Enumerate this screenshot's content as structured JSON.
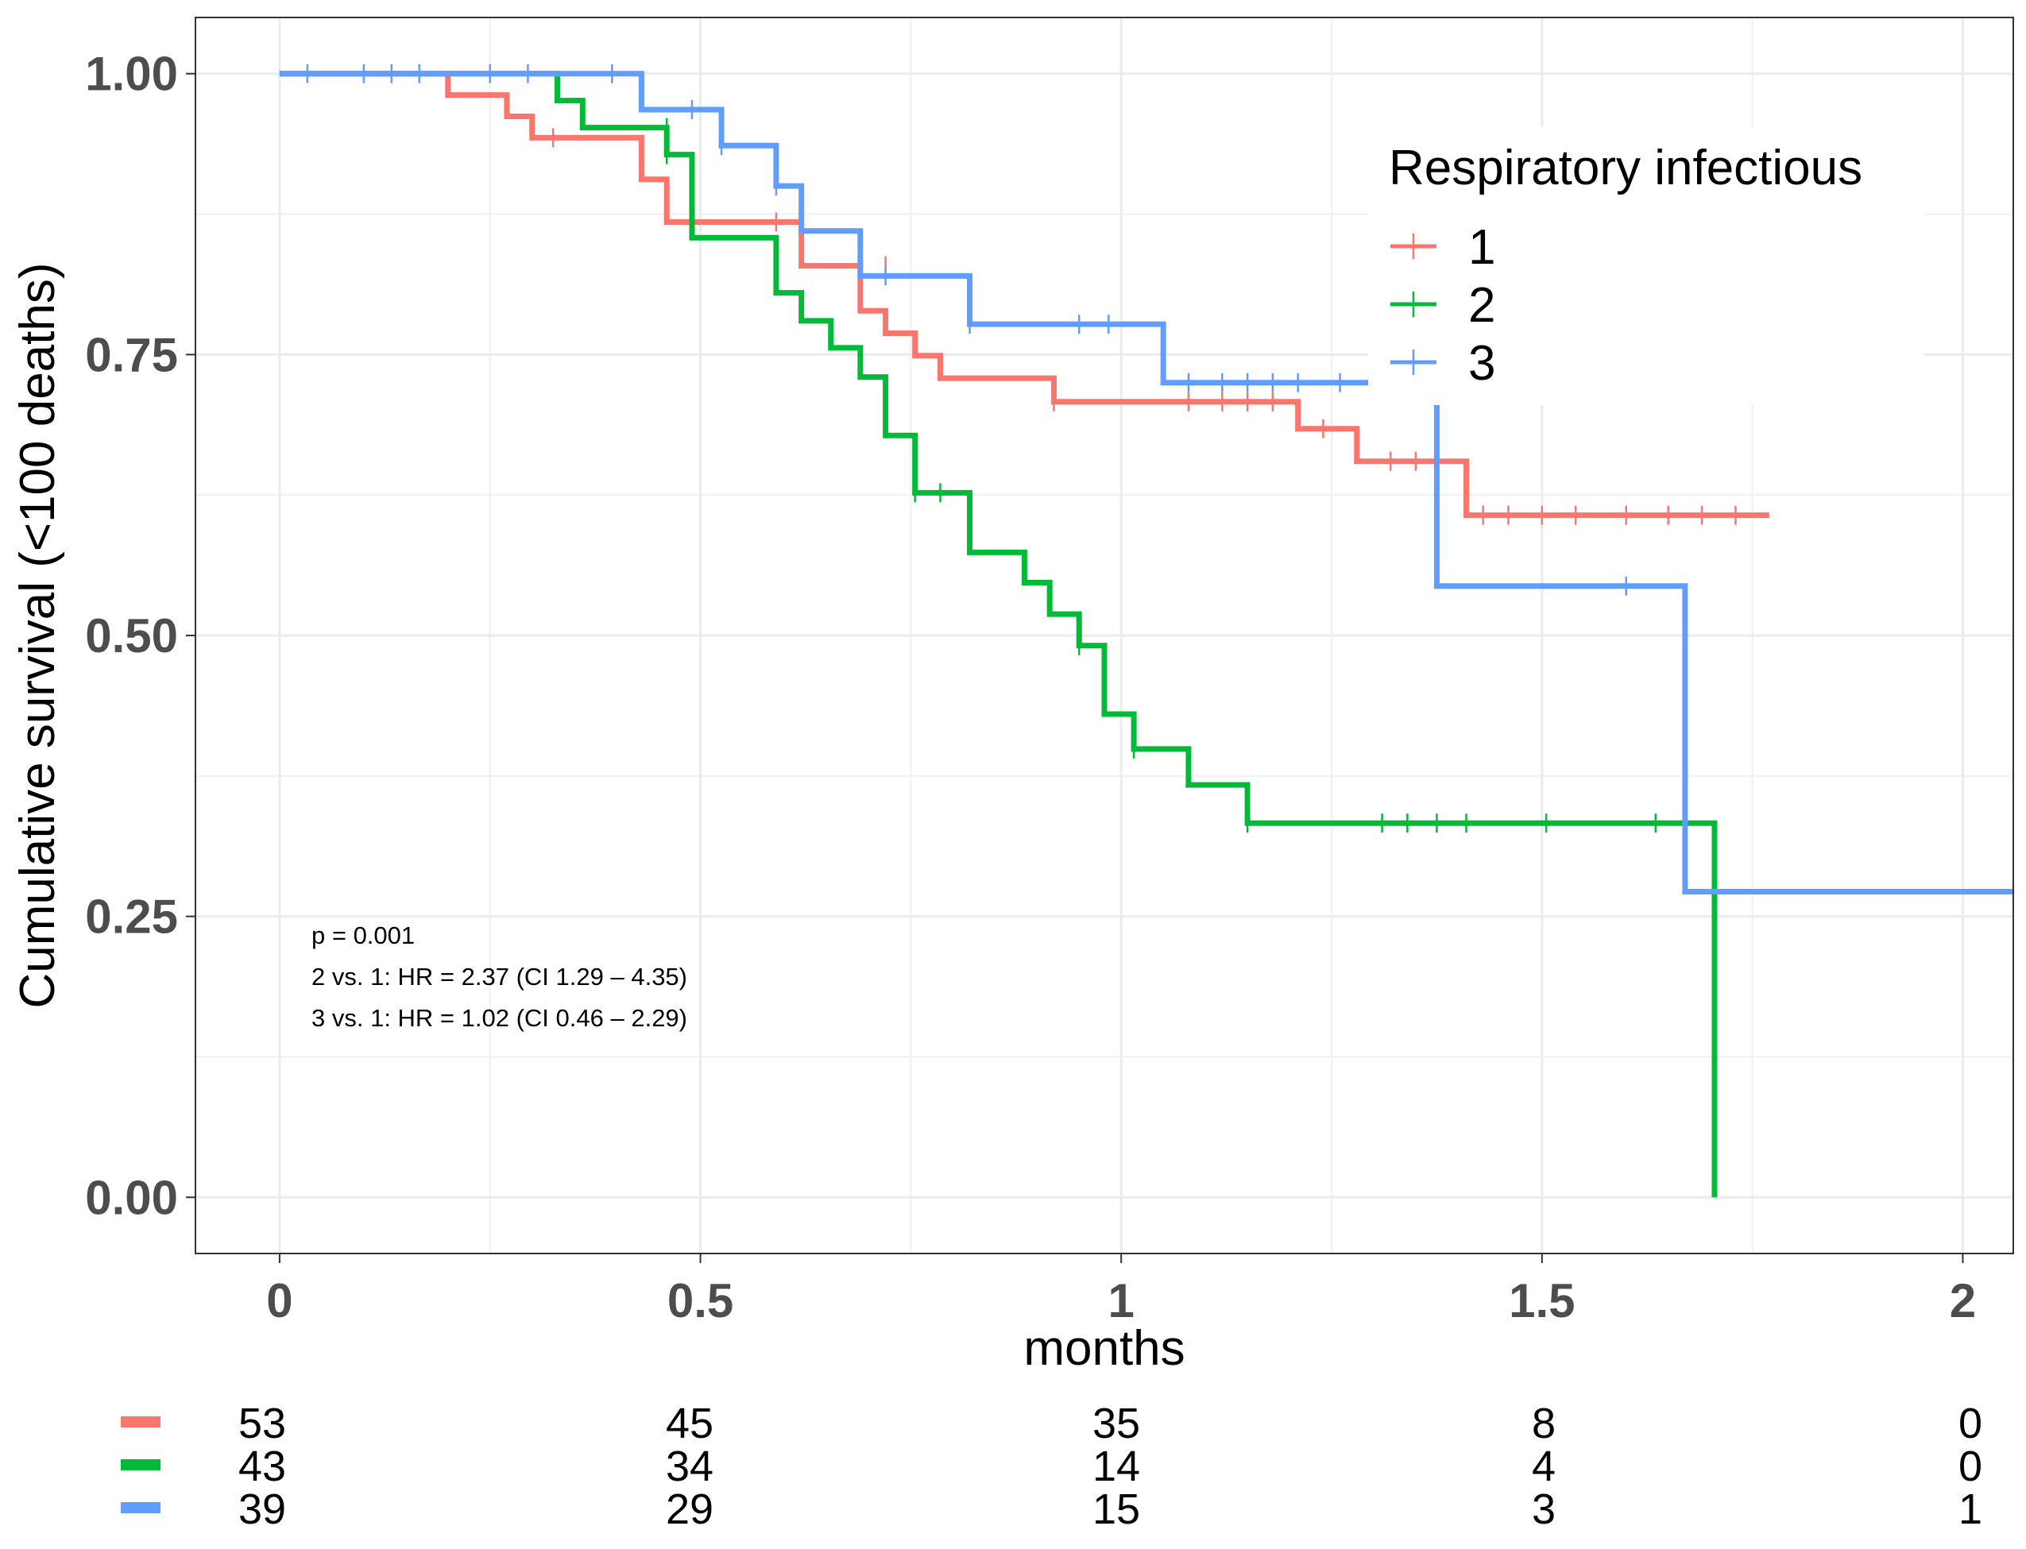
{
  "chart_data": {
    "type": "line",
    "subtype": "kaplan-meier step",
    "xlabel": "months",
    "ylabel": "Cumulative survival (<100 deaths)",
    "xlim": [
      -0.1,
      2.06
    ],
    "ylim": [
      -0.05,
      1.05
    ],
    "x_ticks": [
      0,
      0.5,
      1,
      1.5,
      2
    ],
    "x_tick_labels": [
      "0",
      "0.5",
      "1",
      "1.5",
      "2"
    ],
    "y_ticks": [
      0,
      0.25,
      0.5,
      0.75,
      1
    ],
    "y_tick_labels": [
      "0.00",
      "0.25",
      "0.50",
      "0.75",
      "1.00"
    ],
    "grid": true,
    "legend": {
      "title": "Respiratory infectious",
      "placement": "top-right"
    },
    "series": [
      {
        "name": "1",
        "color": "#F8766D",
        "steps": [
          [
            0,
            1.0
          ],
          [
            0.2,
            0.981
          ],
          [
            0.27,
            0.962
          ],
          [
            0.3,
            0.943
          ],
          [
            0.43,
            0.906
          ],
          [
            0.46,
            0.868
          ],
          [
            0.62,
            0.829
          ],
          [
            0.69,
            0.789
          ],
          [
            0.72,
            0.769
          ],
          [
            0.755,
            0.749
          ],
          [
            0.785,
            0.729
          ],
          [
            0.92,
            0.708
          ],
          [
            1.21,
            0.684
          ],
          [
            1.28,
            0.655
          ],
          [
            1.41,
            0.607
          ],
          [
            1.77,
            0.607
          ]
        ],
        "censors": [
          [
            0.325,
            0.943
          ],
          [
            0.59,
            0.868
          ],
          [
            0.72,
            0.829
          ],
          [
            0.92,
            0.708
          ],
          [
            1.08,
            0.708
          ],
          [
            1.12,
            0.708
          ],
          [
            1.15,
            0.708
          ],
          [
            1.18,
            0.708
          ],
          [
            1.24,
            0.684
          ],
          [
            1.32,
            0.655
          ],
          [
            1.35,
            0.655
          ],
          [
            1.43,
            0.607
          ],
          [
            1.46,
            0.607
          ],
          [
            1.5,
            0.607
          ],
          [
            1.54,
            0.607
          ],
          [
            1.6,
            0.607
          ],
          [
            1.65,
            0.607
          ],
          [
            1.69,
            0.607
          ],
          [
            1.73,
            0.607
          ]
        ]
      },
      {
        "name": "2",
        "color": "#00BA38",
        "steps": [
          [
            0,
            1.0
          ],
          [
            0.33,
            0.976
          ],
          [
            0.36,
            0.952
          ],
          [
            0.46,
            0.928
          ],
          [
            0.49,
            0.854
          ],
          [
            0.59,
            0.805
          ],
          [
            0.62,
            0.78
          ],
          [
            0.655,
            0.756
          ],
          [
            0.69,
            0.73
          ],
          [
            0.72,
            0.678
          ],
          [
            0.755,
            0.627
          ],
          [
            0.82,
            0.574
          ],
          [
            0.885,
            0.547
          ],
          [
            0.915,
            0.519
          ],
          [
            0.95,
            0.491
          ],
          [
            0.98,
            0.43
          ],
          [
            1.015,
            0.399
          ],
          [
            1.08,
            0.367
          ],
          [
            1.15,
            0.333
          ],
          [
            1.705,
            0.333
          ],
          [
            1.705,
            0.0
          ]
        ],
        "censors": [
          [
            0.46,
            0.952
          ],
          [
            0.46,
            0.928
          ],
          [
            0.755,
            0.627
          ],
          [
            0.785,
            0.627
          ],
          [
            0.95,
            0.491
          ],
          [
            1.015,
            0.399
          ],
          [
            1.15,
            0.333
          ],
          [
            1.31,
            0.333
          ],
          [
            1.34,
            0.333
          ],
          [
            1.375,
            0.333
          ],
          [
            1.41,
            0.333
          ],
          [
            1.505,
            0.333
          ],
          [
            1.635,
            0.333
          ],
          [
            1.67,
            0.333
          ]
        ]
      },
      {
        "name": "3",
        "color": "#619CFF",
        "steps": [
          [
            0,
            1.0
          ],
          [
            0.43,
            0.968
          ],
          [
            0.525,
            0.936
          ],
          [
            0.59,
            0.9
          ],
          [
            0.62,
            0.86
          ],
          [
            0.69,
            0.82
          ],
          [
            0.82,
            0.777
          ],
          [
            1.05,
            0.725
          ],
          [
            1.375,
            0.725
          ],
          [
            1.375,
            0.544
          ],
          [
            1.67,
            0.544
          ],
          [
            1.67,
            0.272
          ],
          [
            2.06,
            0.272
          ]
        ]
      }
    ],
    "series_censors_3": [
      [
        0.033,
        1.0
      ],
      [
        0.1,
        1.0
      ],
      [
        0.133,
        1.0
      ],
      [
        0.166,
        1.0
      ],
      [
        0.25,
        1.0
      ],
      [
        0.295,
        1.0
      ],
      [
        0.395,
        1.0
      ],
      [
        0.49,
        0.968
      ],
      [
        0.525,
        0.936
      ],
      [
        0.59,
        0.9
      ],
      [
        0.72,
        0.82
      ],
      [
        0.82,
        0.777
      ],
      [
        0.95,
        0.777
      ],
      [
        0.985,
        0.777
      ],
      [
        1.08,
        0.725
      ],
      [
        1.12,
        0.725
      ],
      [
        1.15,
        0.725
      ],
      [
        1.18,
        0.725
      ],
      [
        1.21,
        0.725
      ],
      [
        1.26,
        0.725
      ],
      [
        1.6,
        0.544
      ]
    ],
    "annotations": [
      "p = 0.001",
      "2 vs. 1: HR = 2.37 (CI 1.29 – 4.35)",
      "3 vs. 1: HR = 1.02 (CI 0.46 – 2.29)"
    ],
    "risk_table": {
      "times": [
        0,
        0.5,
        1,
        1.5,
        2
      ],
      "rows": [
        {
          "color": "#F8766D",
          "counts": [
            "53",
            "45",
            "35",
            "8",
            "0"
          ]
        },
        {
          "color": "#00BA38",
          "counts": [
            "43",
            "34",
            "14",
            "4",
            "0"
          ]
        },
        {
          "color": "#619CFF",
          "counts": [
            "39",
            "29",
            "15",
            "3",
            "1"
          ]
        }
      ]
    }
  }
}
